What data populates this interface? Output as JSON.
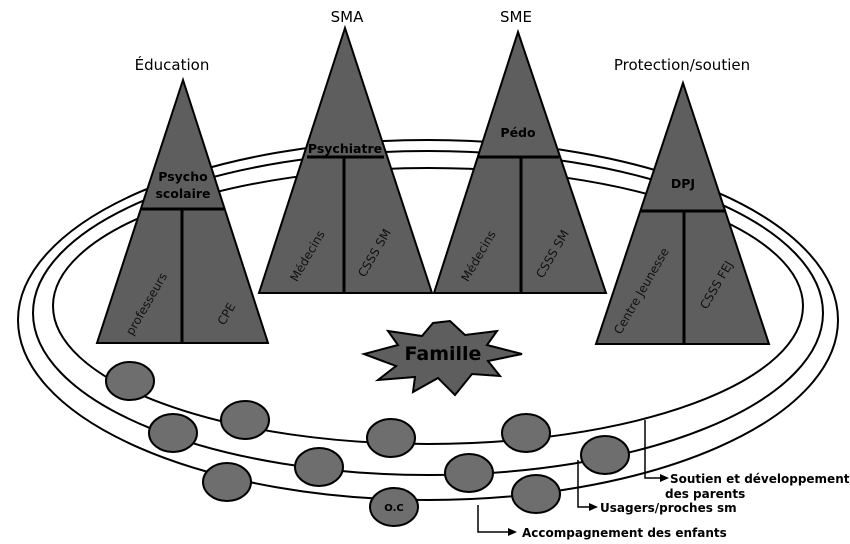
{
  "pyramids": [
    {
      "title": "Éducation",
      "top_label": [
        "Psycho",
        "scolaire"
      ],
      "left_label": "professeurs",
      "right_label": "CPE"
    },
    {
      "title": "SMA",
      "top_label": [
        "Psychiatre"
      ],
      "left_label": "Médecins",
      "right_label": "CSSS SM"
    },
    {
      "title": "SME",
      "top_label": [
        "Pédo"
      ],
      "left_label": "Médecins",
      "right_label": "CSSS SM"
    },
    {
      "title": "Protection/soutien",
      "top_label": [
        "DPJ"
      ],
      "left_label": "Centre Jeunesse",
      "right_label": "CSSS FEJ"
    }
  ],
  "center": {
    "label": "Famille"
  },
  "node_label": "O.C",
  "legend": {
    "ring_inner": [
      "Soutien et développement",
      "des parents"
    ],
    "ring_middle": "Usagers/proches sm",
    "ring_outer": "Accompagnement des enfants"
  },
  "colors": {
    "pyramid_fill": "#5e5e5e",
    "node_fill": "#6e6e6e",
    "outline": "#000000",
    "background": "#ffffff"
  }
}
